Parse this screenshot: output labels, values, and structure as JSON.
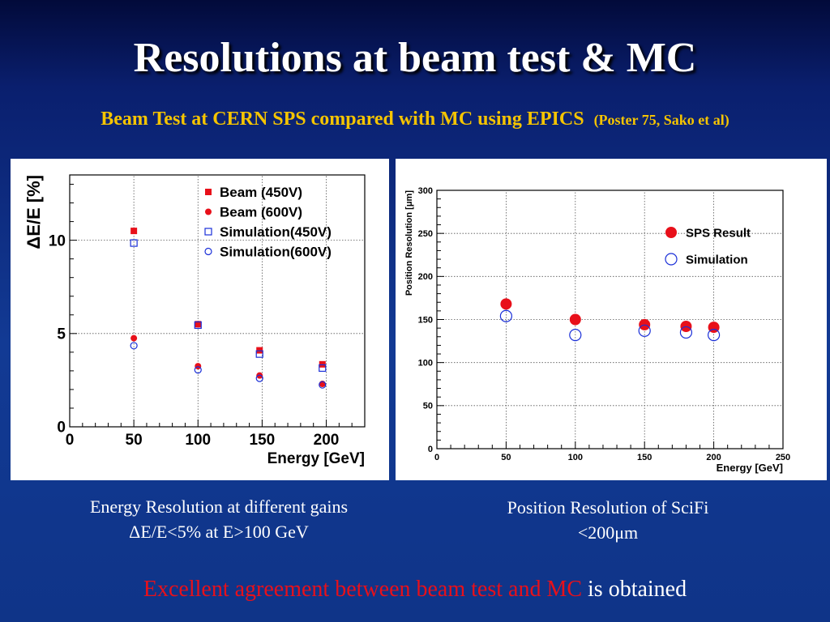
{
  "slide": {
    "title": "Resolutions at beam test & MC",
    "subtitle": "Beam Test at CERN SPS compared with MC using EPICS",
    "subtitle_note": "(Poster 75, Sako et al)",
    "caption_left_line1": "Energy Resolution at different gains",
    "caption_left_line2": "ΔE/E<5% at E>100 GeV",
    "caption_right_line1": "Position Resolution of SciFi",
    "caption_right_line2": "<200μm",
    "conclusion_highlight": "Excellent agreement between beam test and MC",
    "conclusion_rest": " is obtained"
  },
  "colors": {
    "title": "#ffffff",
    "subtitle": "#f5c400",
    "highlight": "#e8101a",
    "beam": "#e8101a",
    "simulation": "#1a2fd8"
  },
  "chart_data": [
    {
      "type": "scatter",
      "xlabel": "Energy [GeV]",
      "ylabel": "ΔE/E [%]",
      "xlim": [
        0,
        230
      ],
      "ylim": [
        0,
        13.5
      ],
      "xticks": [
        0,
        50,
        100,
        150,
        200
      ],
      "yticks": [
        0,
        5,
        10
      ],
      "grid": true,
      "legend": "top-right",
      "series": [
        {
          "name": "Beam (450V)",
          "marker": "filled-square",
          "color": "#e8101a",
          "x": [
            50,
            100,
            148,
            197
          ],
          "y": [
            10.5,
            5.5,
            4.1,
            3.35
          ]
        },
        {
          "name": "Beam (600V)",
          "marker": "filled-circle",
          "color": "#e8101a",
          "x": [
            50,
            100,
            148,
            197
          ],
          "y": [
            4.75,
            3.25,
            2.75,
            2.3
          ]
        },
        {
          "name": "Simulation(450V)",
          "marker": "open-square",
          "color": "#1a2fd8",
          "x": [
            50,
            100,
            148,
            197
          ],
          "y": [
            9.85,
            5.45,
            3.9,
            3.15
          ]
        },
        {
          "name": "Simulation(600V)",
          "marker": "open-circle",
          "color": "#1a2fd8",
          "x": [
            50,
            100,
            148,
            197
          ],
          "y": [
            4.35,
            3.05,
            2.6,
            2.25
          ]
        }
      ]
    },
    {
      "type": "scatter",
      "xlabel": "Energy [GeV]",
      "ylabel": "Position Resolution [μm]",
      "xlim": [
        0,
        250
      ],
      "ylim": [
        0,
        300
      ],
      "xticks": [
        0,
        50,
        100,
        150,
        200,
        250
      ],
      "yticks": [
        0,
        50,
        100,
        150,
        200,
        250,
        300
      ],
      "grid": true,
      "legend": "top-right",
      "series": [
        {
          "name": "SPS Result",
          "marker": "filled-circle",
          "color": "#e8101a",
          "x": [
            50,
            100,
            150,
            180,
            200
          ],
          "y": [
            168,
            150,
            144,
            142,
            141
          ]
        },
        {
          "name": "Simulation",
          "marker": "open-circle",
          "color": "#1a2fd8",
          "x": [
            50,
            100,
            150,
            180,
            200
          ],
          "y": [
            154,
            132,
            137,
            135,
            132
          ]
        }
      ]
    }
  ]
}
